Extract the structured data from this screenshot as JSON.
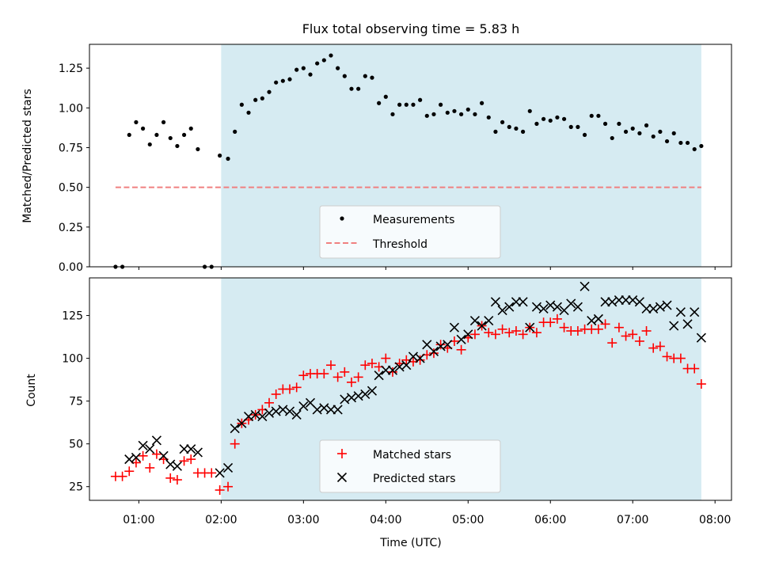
{
  "title": "Flux total observing time = 5.83 h",
  "xlabel": "Time (UTC)",
  "x_ticks": [
    "01:00",
    "02:00",
    "03:00",
    "04:00",
    "05:00",
    "06:00",
    "07:00",
    "08:00"
  ],
  "colors": {
    "observing_band": "#add8e6",
    "measurements": "#000000",
    "threshold": "#f08080",
    "matched": "#ff0000",
    "predicted": "#000000"
  },
  "chart_data": [
    {
      "type": "scatter",
      "ylabel": "Matched/Predicted stars",
      "ylim": [
        0,
        1.4
      ],
      "xlim": [
        "00:24",
        "08:12"
      ],
      "y_ticks": [
        "0.00",
        "0.25",
        "0.50",
        "0.75",
        "1.00",
        "1.25"
      ],
      "observing_window": [
        "02:00",
        "07:50"
      ],
      "legend_placement": "lower center",
      "threshold": {
        "name": "Threshold",
        "y": 0.5,
        "x_range": [
          "00:43",
          "07:50"
        ]
      },
      "series": [
        {
          "name": "Measurements",
          "points": [
            [
              "00:43",
              0.0
            ],
            [
              "00:48",
              0.0
            ],
            [
              "00:53",
              0.83
            ],
            [
              "00:58",
              0.91
            ],
            [
              "01:03",
              0.87
            ],
            [
              "01:08",
              0.77
            ],
            [
              "01:13",
              0.83
            ],
            [
              "01:18",
              0.91
            ],
            [
              "01:23",
              0.81
            ],
            [
              "01:28",
              0.76
            ],
            [
              "01:33",
              0.83
            ],
            [
              "01:38",
              0.87
            ],
            [
              "01:43",
              0.74
            ],
            [
              "01:48",
              0.0
            ],
            [
              "01:53",
              0.0
            ],
            [
              "01:59",
              0.7
            ],
            [
              "02:05",
              0.68
            ],
            [
              "02:10",
              0.85
            ],
            [
              "02:15",
              1.02
            ],
            [
              "02:20",
              0.97
            ],
            [
              "02:25",
              1.05
            ],
            [
              "02:30",
              1.06
            ],
            [
              "02:35",
              1.1
            ],
            [
              "02:40",
              1.16
            ],
            [
              "02:45",
              1.17
            ],
            [
              "02:50",
              1.18
            ],
            [
              "02:55",
              1.24
            ],
            [
              "03:00",
              1.25
            ],
            [
              "03:05",
              1.21
            ],
            [
              "03:10",
              1.28
            ],
            [
              "03:15",
              1.3
            ],
            [
              "03:20",
              1.33
            ],
            [
              "03:25",
              1.25
            ],
            [
              "03:30",
              1.2
            ],
            [
              "03:35",
              1.12
            ],
            [
              "03:40",
              1.12
            ],
            [
              "03:45",
              1.2
            ],
            [
              "03:50",
              1.19
            ],
            [
              "03:55",
              1.03
            ],
            [
              "04:00",
              1.07
            ],
            [
              "04:05",
              0.96
            ],
            [
              "04:10",
              1.02
            ],
            [
              "04:15",
              1.02
            ],
            [
              "04:20",
              1.02
            ],
            [
              "04:25",
              1.05
            ],
            [
              "04:30",
              0.95
            ],
            [
              "04:35",
              0.96
            ],
            [
              "04:40",
              1.02
            ],
            [
              "04:45",
              0.97
            ],
            [
              "04:50",
              0.98
            ],
            [
              "04:55",
              0.96
            ],
            [
              "05:00",
              0.99
            ],
            [
              "05:05",
              0.96
            ],
            [
              "05:10",
              1.03
            ],
            [
              "05:15",
              0.94
            ],
            [
              "05:20",
              0.85
            ],
            [
              "05:25",
              0.91
            ],
            [
              "05:30",
              0.88
            ],
            [
              "05:35",
              0.87
            ],
            [
              "05:40",
              0.85
            ],
            [
              "05:45",
              0.98
            ],
            [
              "05:50",
              0.9
            ],
            [
              "05:55",
              0.93
            ],
            [
              "06:00",
              0.92
            ],
            [
              "06:05",
              0.94
            ],
            [
              "06:10",
              0.93
            ],
            [
              "06:15",
              0.88
            ],
            [
              "06:20",
              0.88
            ],
            [
              "06:25",
              0.83
            ],
            [
              "06:30",
              0.95
            ],
            [
              "06:35",
              0.95
            ],
            [
              "06:40",
              0.9
            ],
            [
              "06:45",
              0.81
            ],
            [
              "06:50",
              0.9
            ],
            [
              "06:55",
              0.85
            ],
            [
              "07:00",
              0.87
            ],
            [
              "07:05",
              0.84
            ],
            [
              "07:10",
              0.89
            ],
            [
              "07:15",
              0.82
            ],
            [
              "07:20",
              0.85
            ],
            [
              "07:25",
              0.79
            ],
            [
              "07:30",
              0.84
            ],
            [
              "07:35",
              0.78
            ],
            [
              "07:40",
              0.78
            ],
            [
              "07:45",
              0.74
            ],
            [
              "07:50",
              0.76
            ]
          ]
        }
      ]
    },
    {
      "type": "scatter",
      "ylabel": "Count",
      "ylim": [
        17,
        147
      ],
      "xlim": [
        "00:24",
        "08:12"
      ],
      "y_ticks": [
        "25",
        "50",
        "75",
        "100",
        "125"
      ],
      "observing_window": [
        "02:00",
        "07:50"
      ],
      "legend_placement": "lower center",
      "series": [
        {
          "name": "Matched stars",
          "points": [
            [
              "00:43",
              31
            ],
            [
              "00:48",
              31
            ],
            [
              "00:53",
              34
            ],
            [
              "00:58",
              39
            ],
            [
              "01:03",
              43
            ],
            [
              "01:08",
              36
            ],
            [
              "01:13",
              44
            ],
            [
              "01:18",
              41
            ],
            [
              "01:23",
              30
            ],
            [
              "01:28",
              29
            ],
            [
              "01:33",
              40
            ],
            [
              "01:38",
              41
            ],
            [
              "01:43",
              33
            ],
            [
              "01:48",
              33
            ],
            [
              "01:53",
              33
            ],
            [
              "01:59",
              23
            ],
            [
              "02:05",
              25
            ],
            [
              "02:10",
              50
            ],
            [
              "02:15",
              62
            ],
            [
              "02:20",
              64
            ],
            [
              "02:25",
              67
            ],
            [
              "02:30",
              70
            ],
            [
              "02:35",
              74
            ],
            [
              "02:40",
              79
            ],
            [
              "02:45",
              82
            ],
            [
              "02:50",
              82
            ],
            [
              "02:55",
              83
            ],
            [
              "03:00",
              90
            ],
            [
              "03:05",
              91
            ],
            [
              "03:10",
              91
            ],
            [
              "03:15",
              91
            ],
            [
              "03:20",
              96
            ],
            [
              "03:25",
              89
            ],
            [
              "03:30",
              92
            ],
            [
              "03:35",
              86
            ],
            [
              "03:40",
              89
            ],
            [
              "03:45",
              96
            ],
            [
              "03:50",
              97
            ],
            [
              "03:55",
              95
            ],
            [
              "04:00",
              100
            ],
            [
              "04:05",
              92
            ],
            [
              "04:10",
              97
            ],
            [
              "04:15",
              99
            ],
            [
              "04:20",
              98
            ],
            [
              "04:25",
              99
            ],
            [
              "04:30",
              102
            ],
            [
              "04:35",
              103
            ],
            [
              "04:40",
              108
            ],
            [
              "04:45",
              106
            ],
            [
              "04:50",
              110
            ],
            [
              "04:55",
              105
            ],
            [
              "05:00",
              112
            ],
            [
              "05:05",
              114
            ],
            [
              "05:10",
              119
            ],
            [
              "05:15",
              115
            ],
            [
              "05:20",
              114
            ],
            [
              "05:25",
              117
            ],
            [
              "05:30",
              115
            ],
            [
              "05:35",
              116
            ],
            [
              "05:40",
              114
            ],
            [
              "05:45",
              118
            ],
            [
              "05:50",
              115
            ],
            [
              "05:55",
              121
            ],
            [
              "06:00",
              121
            ],
            [
              "06:05",
              123
            ],
            [
              "06:10",
              118
            ],
            [
              "06:15",
              116
            ],
            [
              "06:20",
              116
            ],
            [
              "06:25",
              117
            ],
            [
              "06:30",
              117
            ],
            [
              "06:35",
              117
            ],
            [
              "06:40",
              120
            ],
            [
              "06:45",
              109
            ],
            [
              "06:50",
              118
            ],
            [
              "06:55",
              113
            ],
            [
              "07:00",
              114
            ],
            [
              "07:05",
              110
            ],
            [
              "07:10",
              116
            ],
            [
              "07:15",
              106
            ],
            [
              "07:20",
              107
            ],
            [
              "07:25",
              101
            ],
            [
              "07:30",
              100
            ],
            [
              "07:35",
              100
            ],
            [
              "07:40",
              94
            ],
            [
              "07:45",
              94
            ],
            [
              "07:50",
              85
            ]
          ]
        },
        {
          "name": "Predicted stars",
          "points": [
            [
              "00:53",
              41
            ],
            [
              "00:58",
              42
            ],
            [
              "01:03",
              49
            ],
            [
              "01:08",
              47
            ],
            [
              "01:13",
              52
            ],
            [
              "01:18",
              43
            ],
            [
              "01:23",
              38
            ],
            [
              "01:28",
              37
            ],
            [
              "01:33",
              47
            ],
            [
              "01:38",
              47
            ],
            [
              "01:43",
              45
            ],
            [
              "01:59",
              33
            ],
            [
              "02:05",
              36
            ],
            [
              "02:10",
              59
            ],
            [
              "02:15",
              62
            ],
            [
              "02:20",
              66
            ],
            [
              "02:25",
              67
            ],
            [
              "02:30",
              66
            ],
            [
              "02:35",
              68
            ],
            [
              "02:40",
              69
            ],
            [
              "02:45",
              70
            ],
            [
              "02:50",
              69
            ],
            [
              "02:55",
              67
            ],
            [
              "03:00",
              72
            ],
            [
              "03:05",
              74
            ],
            [
              "03:10",
              70
            ],
            [
              "03:15",
              71
            ],
            [
              "03:20",
              70
            ],
            [
              "03:25",
              70
            ],
            [
              "03:30",
              76
            ],
            [
              "03:35",
              77
            ],
            [
              "03:40",
              78
            ],
            [
              "03:45",
              79
            ],
            [
              "03:50",
              81
            ],
            [
              "03:55",
              90
            ],
            [
              "04:00",
              93
            ],
            [
              "04:05",
              93
            ],
            [
              "04:10",
              95
            ],
            [
              "04:15",
              96
            ],
            [
              "04:20",
              101
            ],
            [
              "04:25",
              100
            ],
            [
              "04:30",
              108
            ],
            [
              "04:35",
              104
            ],
            [
              "04:40",
              107
            ],
            [
              "04:45",
              108
            ],
            [
              "04:50",
              118
            ],
            [
              "04:55",
              111
            ],
            [
              "05:00",
              114
            ],
            [
              "05:05",
              122
            ],
            [
              "05:10",
              119
            ],
            [
              "05:15",
              122
            ],
            [
              "05:20",
              133
            ],
            [
              "05:25",
              128
            ],
            [
              "05:30",
              130
            ],
            [
              "05:35",
              133
            ],
            [
              "05:40",
              133
            ],
            [
              "05:45",
              118
            ],
            [
              "05:50",
              130
            ],
            [
              "05:55",
              129
            ],
            [
              "06:00",
              131
            ],
            [
              "06:05",
              130
            ],
            [
              "06:10",
              128
            ],
            [
              "06:15",
              132
            ],
            [
              "06:20",
              130
            ],
            [
              "06:25",
              142
            ],
            [
              "06:30",
              122
            ],
            [
              "06:35",
              123
            ],
            [
              "06:40",
              133
            ],
            [
              "06:45",
              133
            ],
            [
              "06:50",
              134
            ],
            [
              "06:55",
              134
            ],
            [
              "07:00",
              134
            ],
            [
              "07:05",
              133
            ],
            [
              "07:10",
              129
            ],
            [
              "07:15",
              129
            ],
            [
              "07:20",
              130
            ],
            [
              "07:25",
              131
            ],
            [
              "07:30",
              119
            ],
            [
              "07:35",
              127
            ],
            [
              "07:40",
              120
            ],
            [
              "07:45",
              127
            ],
            [
              "07:50",
              112
            ]
          ]
        }
      ]
    }
  ]
}
